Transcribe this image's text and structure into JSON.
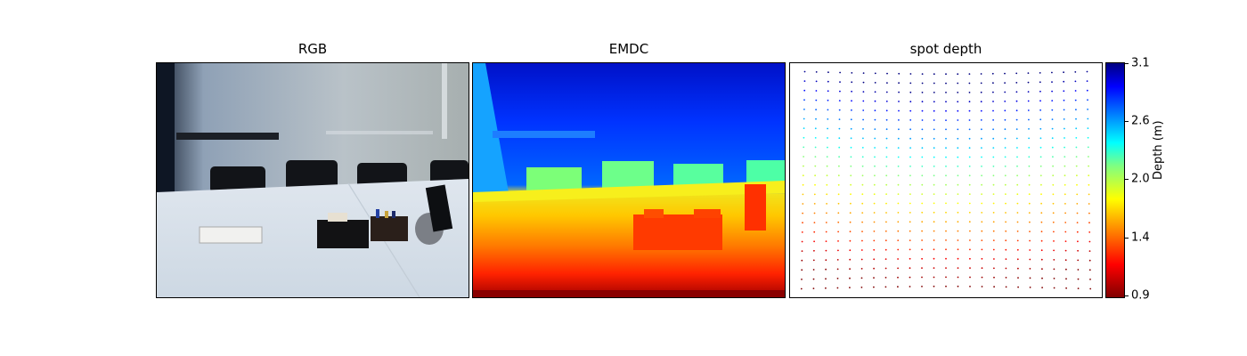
{
  "panels": {
    "rgb": {
      "title": "RGB"
    },
    "emdc": {
      "title": "EMDC"
    },
    "spot": {
      "title": "spot depth"
    }
  },
  "colorbar": {
    "label": "Depth (m)",
    "ticks": [
      "3.1",
      "2.6",
      "2.0",
      "1.4",
      "0.9"
    ],
    "range": [
      0.9,
      3.1
    ],
    "colormap": "jet_r"
  }
}
